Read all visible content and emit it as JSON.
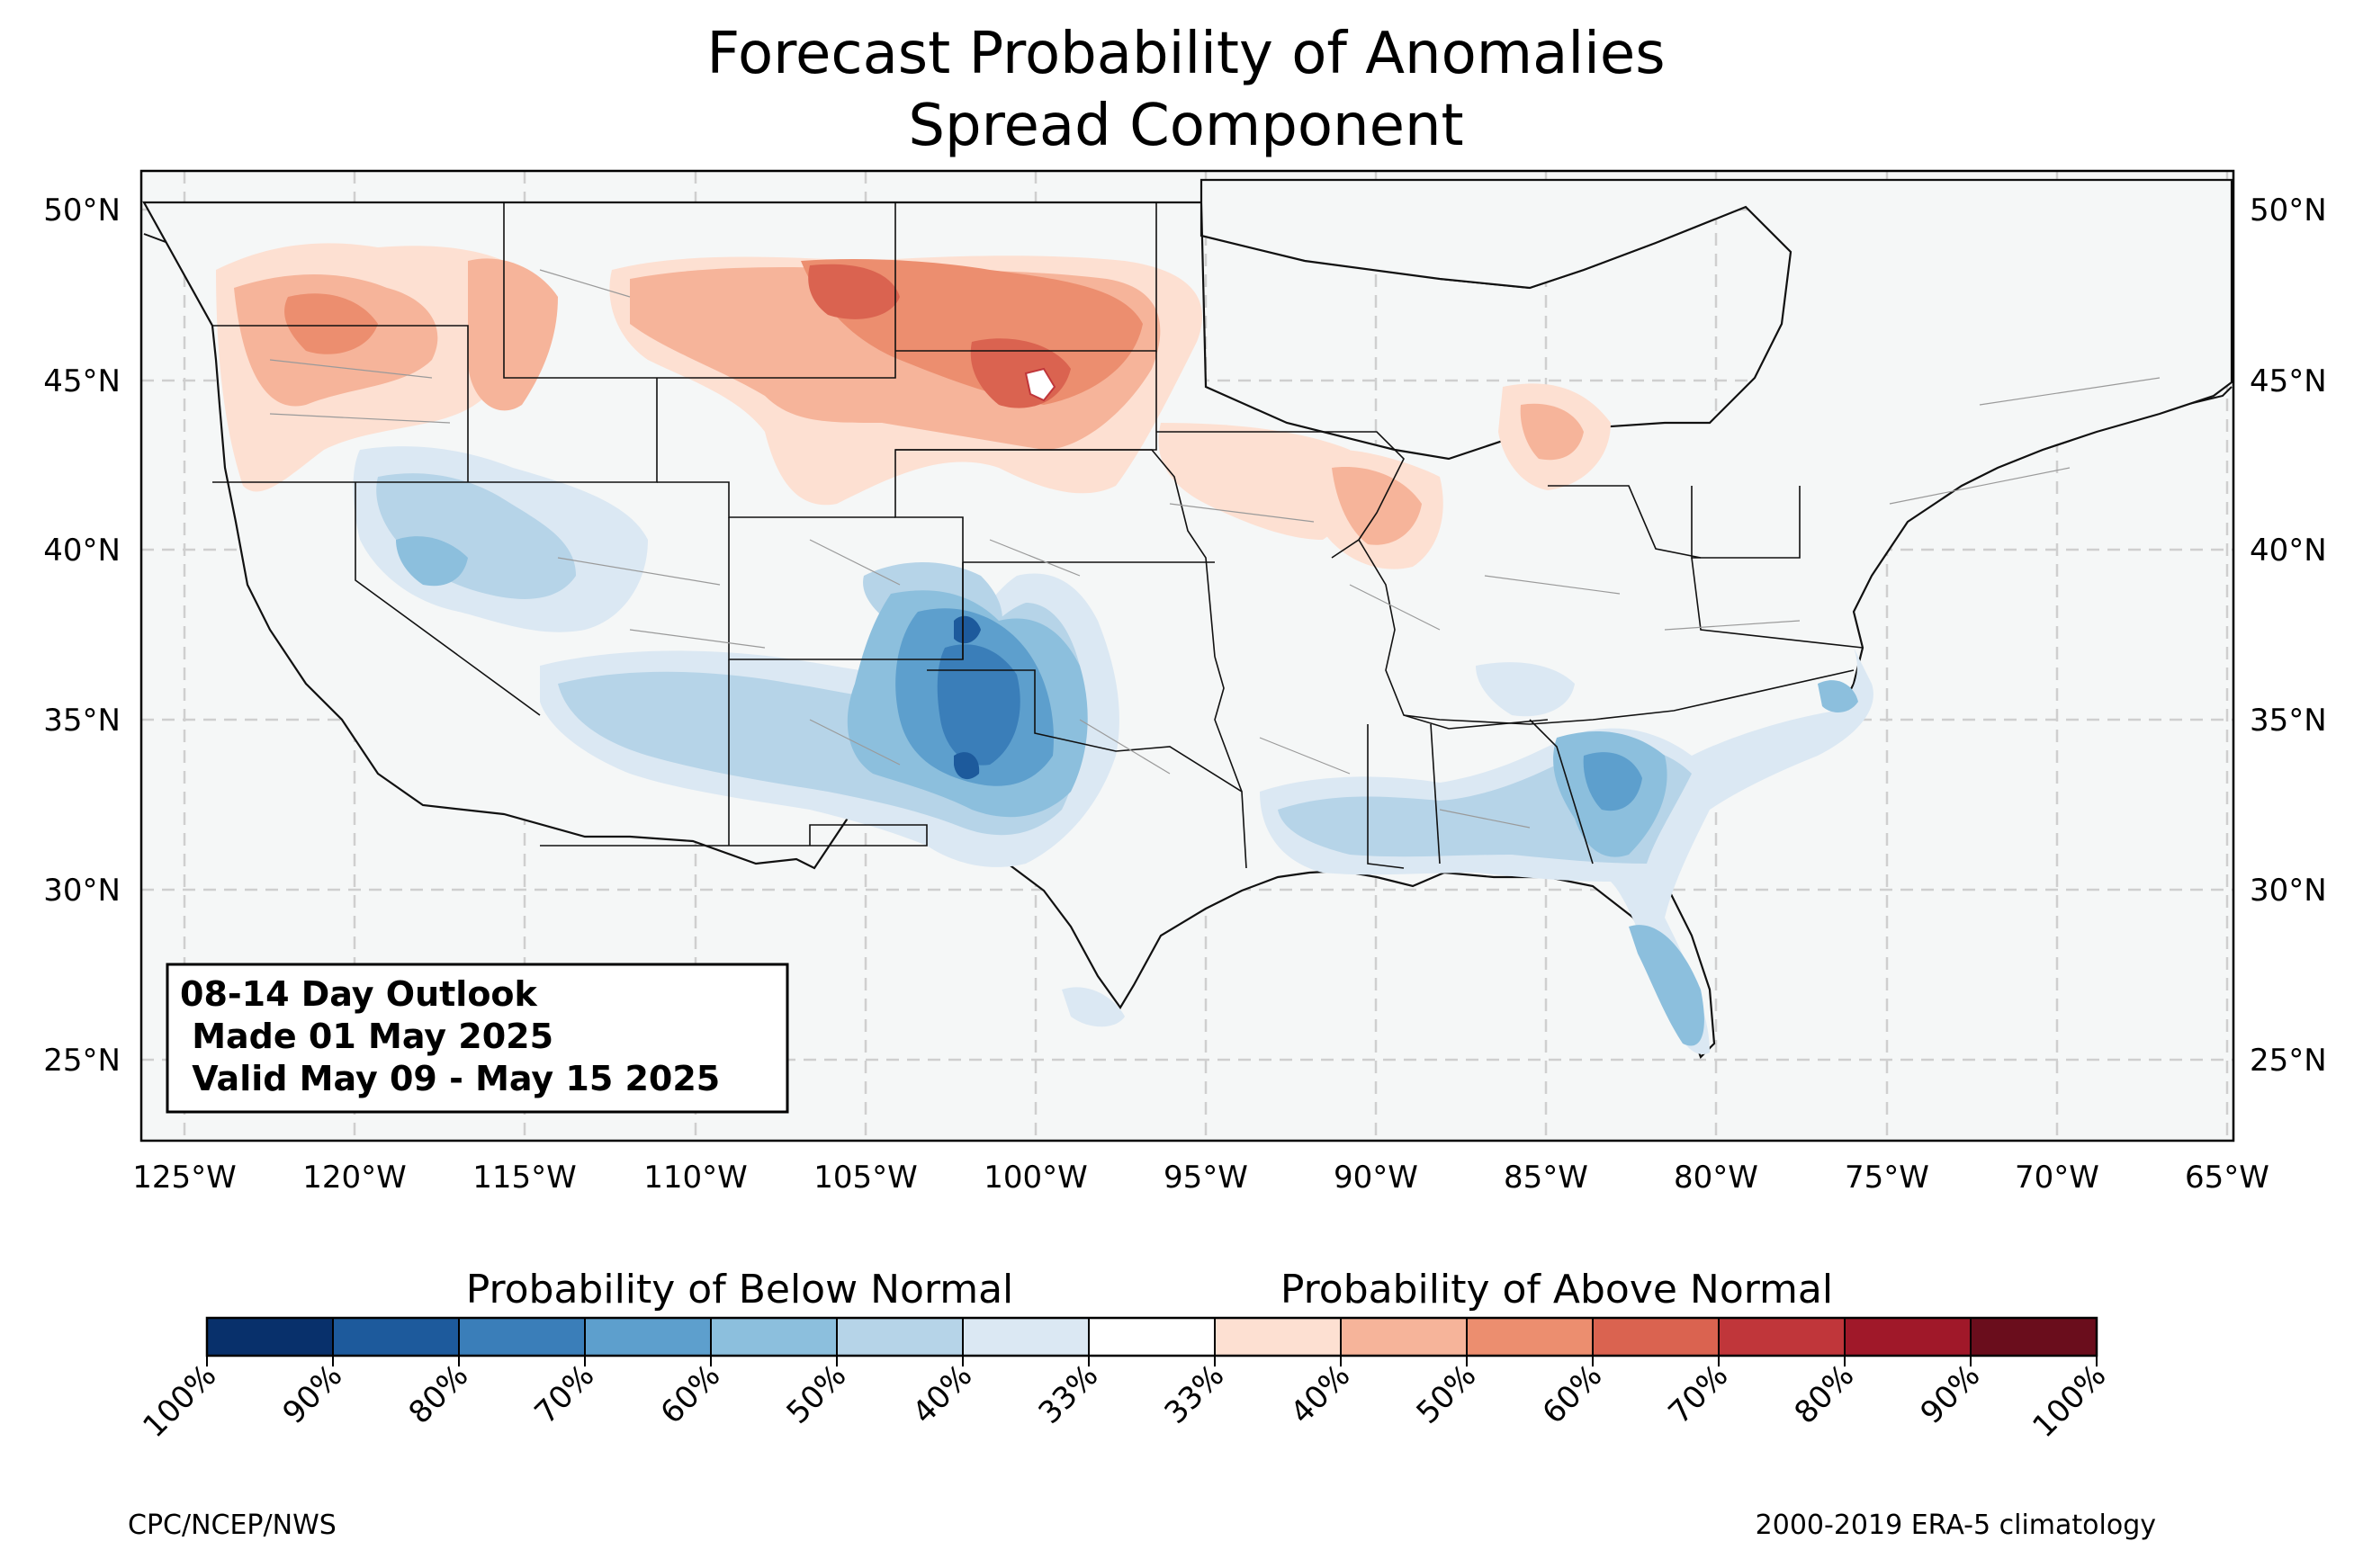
{
  "title": {
    "line1": "Forecast Probability of Anomalies",
    "line2": "Spread Component"
  },
  "outlook_box": {
    "line1": "08-14 Day Outlook",
    "line2": " Made 01 May 2025",
    "line3": " Valid May 09 - May 15 2025"
  },
  "latitude_labels": [
    "50°N",
    "45°N",
    "40°N",
    "35°N",
    "30°N",
    "25°N"
  ],
  "longitude_labels": [
    "125°W",
    "120°W",
    "115°W",
    "110°W",
    "105°W",
    "100°W",
    "95°W",
    "90°W",
    "85°W",
    "80°W",
    "75°W",
    "70°W",
    "65°W"
  ],
  "colorbar": {
    "below_label": "Probability of Below Normal",
    "above_label": "Probability of Above Normal",
    "tick_labels": [
      "100%",
      "90%",
      "80%",
      "70%",
      "60%",
      "50%",
      "40%",
      "33%",
      "33%",
      "40%",
      "50%",
      "60%",
      "70%",
      "80%",
      "90%",
      "100%"
    ],
    "colors": [
      "#08306b",
      "#1d5a9c",
      "#3a7eb9",
      "#5d9fcd",
      "#8cbfdd",
      "#b6d4e8",
      "#dbe8f3",
      "#ffffff",
      "#fde0d2",
      "#f6b49a",
      "#ec8e6f",
      "#da6350",
      "#c0363a",
      "#a01829",
      "#6a0d1c"
    ]
  },
  "footer": {
    "left": "CPC/NCEP/NWS",
    "right": "2000-2019 ERA-5 climatology"
  },
  "map": {
    "region": "Contiguous United States",
    "below_normal_areas": [
      "Southern High Plains",
      "Southwest",
      "Great Basin",
      "Southeast",
      "Florida peninsula"
    ],
    "above_normal_areas": [
      "Pacific Northwest",
      "Northern Rockies",
      "Northern Plains",
      "Upper Midwest",
      "Lower Michigan"
    ]
  }
}
